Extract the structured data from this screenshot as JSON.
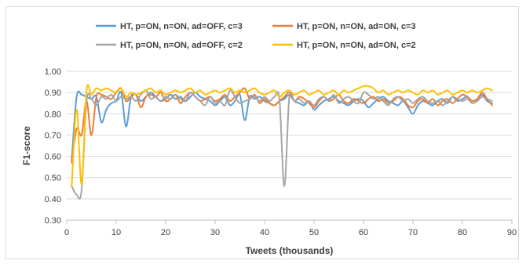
{
  "chart_data": {
    "type": "line",
    "title": "",
    "xlabel": "Tweets (thousands)",
    "ylabel": "F1-score",
    "xlim": [
      0,
      90
    ],
    "ylim": [
      0.3,
      1.0
    ],
    "x_ticks": [
      "0",
      "10",
      "20",
      "30",
      "40",
      "50",
      "60",
      "70",
      "80",
      "90"
    ],
    "y_ticks": [
      "0.30",
      "0.40",
      "0.50",
      "0.60",
      "0.70",
      "0.80",
      "0.90",
      "1.00"
    ],
    "grid": "horizontal",
    "legend_position": "top",
    "series": [
      {
        "name": "HT, p=ON, n=ON, ad=OFF, c=3",
        "color": "#5b9bd5",
        "values": [
          0.58,
          0.88,
          0.89,
          0.88,
          0.87,
          0.88,
          0.76,
          0.82,
          0.85,
          0.86,
          0.9,
          0.74,
          0.88,
          0.89,
          0.86,
          0.88,
          0.9,
          0.88,
          0.86,
          0.87,
          0.89,
          0.87,
          0.88,
          0.86,
          0.88,
          0.9,
          0.88,
          0.87,
          0.86,
          0.84,
          0.86,
          0.88,
          0.84,
          0.86,
          0.89,
          0.77,
          0.88,
          0.87,
          0.88,
          0.86,
          0.85,
          0.84,
          0.86,
          0.87,
          0.89,
          0.86,
          0.85,
          0.84,
          0.86,
          0.82,
          0.84,
          0.86,
          0.87,
          0.88,
          0.86,
          0.85,
          0.84,
          0.86,
          0.87,
          0.86,
          0.83,
          0.85,
          0.87,
          0.88,
          0.86,
          0.85,
          0.84,
          0.86,
          0.83,
          0.8,
          0.84,
          0.86,
          0.85,
          0.84,
          0.86,
          0.87,
          0.85,
          0.88,
          0.86,
          0.87,
          0.88,
          0.86,
          0.87,
          0.89,
          0.86,
          0.85
        ]
      },
      {
        "name": "HT, p=ON, n=ON, ad=ON, c=3",
        "color": "#ed7d31",
        "values": [
          0.57,
          0.73,
          0.7,
          0.86,
          0.7,
          0.88,
          0.89,
          0.88,
          0.87,
          0.9,
          0.92,
          0.86,
          0.88,
          0.89,
          0.83,
          0.88,
          0.89,
          0.88,
          0.9,
          0.86,
          0.87,
          0.89,
          0.85,
          0.88,
          0.9,
          0.88,
          0.86,
          0.87,
          0.88,
          0.86,
          0.87,
          0.89,
          0.86,
          0.88,
          0.9,
          0.92,
          0.87,
          0.89,
          0.85,
          0.87,
          0.85,
          0.84,
          0.86,
          0.88,
          0.9,
          0.86,
          0.88,
          0.87,
          0.85,
          0.83,
          0.86,
          0.88,
          0.86,
          0.87,
          0.89,
          0.86,
          0.85,
          0.87,
          0.86,
          0.85,
          0.87,
          0.88,
          0.86,
          0.87,
          0.85,
          0.86,
          0.88,
          0.87,
          0.84,
          0.83,
          0.86,
          0.87,
          0.85,
          0.87,
          0.84,
          0.86,
          0.87,
          0.85,
          0.87,
          0.89,
          0.88,
          0.86,
          0.87,
          0.9,
          0.87,
          0.84
        ]
      },
      {
        "name": "HT, p=ON, n=ON, ad=OFF, c=2",
        "color": "#a5a5a5",
        "values": [
          0.46,
          0.42,
          0.44,
          0.86,
          0.87,
          0.84,
          0.88,
          0.87,
          0.89,
          0.86,
          0.88,
          0.87,
          0.88,
          0.86,
          0.89,
          0.91,
          0.87,
          0.88,
          0.86,
          0.88,
          0.87,
          0.89,
          0.87,
          0.86,
          0.9,
          0.88,
          0.86,
          0.84,
          0.88,
          0.85,
          0.86,
          0.84,
          0.91,
          0.88,
          0.85,
          0.86,
          0.87,
          0.88,
          0.86,
          0.88,
          0.86,
          0.88,
          0.87,
          0.46,
          0.88,
          0.86,
          0.87,
          0.85,
          0.86,
          0.84,
          0.87,
          0.88,
          0.86,
          0.89,
          0.85,
          0.87,
          0.88,
          0.86,
          0.85,
          0.9,
          0.89,
          0.87,
          0.88,
          0.86,
          0.84,
          0.87,
          0.88,
          0.86,
          0.87,
          0.85,
          0.87,
          0.88,
          0.86,
          0.85,
          0.86,
          0.84,
          0.86,
          0.88,
          0.87,
          0.86,
          0.87,
          0.85,
          0.86,
          0.88,
          0.87,
          0.86
        ]
      },
      {
        "name": "HT, p=ON, n=ON, ad=ON, c=2",
        "color": "#ffc000",
        "values": [
          0.46,
          0.82,
          0.47,
          0.91,
          0.89,
          0.92,
          0.91,
          0.92,
          0.91,
          0.9,
          0.92,
          0.88,
          0.9,
          0.89,
          0.9,
          0.91,
          0.92,
          0.9,
          0.91,
          0.89,
          0.9,
          0.91,
          0.9,
          0.91,
          0.92,
          0.9,
          0.91,
          0.89,
          0.9,
          0.91,
          0.9,
          0.91,
          0.92,
          0.9,
          0.91,
          0.9,
          0.91,
          0.92,
          0.9,
          0.89,
          0.9,
          0.91,
          0.88,
          0.9,
          0.91,
          0.89,
          0.9,
          0.91,
          0.89,
          0.9,
          0.91,
          0.89,
          0.9,
          0.91,
          0.89,
          0.91,
          0.9,
          0.91,
          0.92,
          0.93,
          0.93,
          0.92,
          0.9,
          0.91,
          0.89,
          0.9,
          0.91,
          0.9,
          0.91,
          0.9,
          0.89,
          0.91,
          0.9,
          0.91,
          0.89,
          0.9,
          0.91,
          0.89,
          0.9,
          0.91,
          0.9,
          0.91,
          0.9,
          0.91,
          0.92,
          0.91
        ]
      }
    ]
  }
}
